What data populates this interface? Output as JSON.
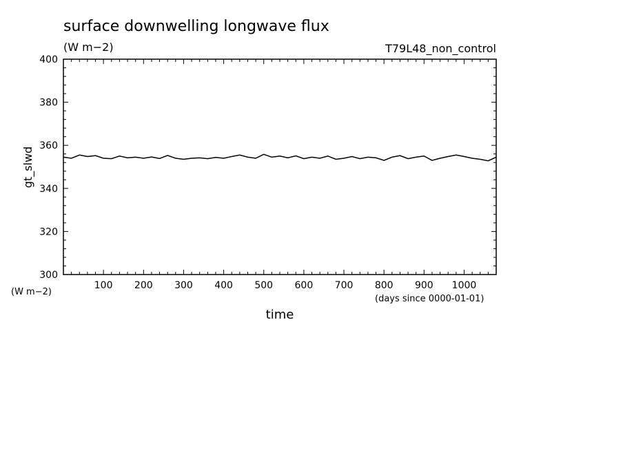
{
  "chart_data": {
    "type": "line",
    "title": "surface downwelling longwave flux",
    "units": "(W m−2)",
    "run_label": "T79L48_non_control",
    "xlabel": "time",
    "x_units": "(days since 0000-01-01)",
    "ylabel": "gt_slwd",
    "y_units": "(W m−2)",
    "xlim": [
      0,
      1080
    ],
    "ylim": [
      300,
      400
    ],
    "xticks": [
      100,
      200,
      300,
      400,
      500,
      600,
      700,
      800,
      900,
      1000
    ],
    "yticks": [
      300,
      320,
      340,
      360,
      380,
      400
    ],
    "grid": false,
    "series": [
      {
        "x": [
          0,
          20,
          40,
          60,
          80,
          100,
          120,
          140,
          160,
          180,
          200,
          220,
          240,
          260,
          280,
          300,
          320,
          340,
          360,
          380,
          400,
          420,
          440,
          460,
          480,
          500,
          520,
          540,
          560,
          580,
          600,
          620,
          640,
          660,
          680,
          700,
          720,
          740,
          760,
          780,
          800,
          820,
          840,
          860,
          880,
          900,
          920,
          940,
          960,
          980,
          1000,
          1020,
          1040,
          1060,
          1080
        ],
        "y": [
          354.5,
          354.0,
          355.5,
          354.8,
          355.2,
          354.0,
          353.8,
          355.0,
          354.2,
          354.5,
          354.0,
          354.6,
          353.9,
          355.3,
          354.0,
          353.5,
          354.0,
          354.2,
          353.8,
          354.4,
          354.0,
          354.8,
          355.5,
          354.5,
          354.0,
          355.8,
          354.5,
          355.0,
          354.2,
          355.1,
          353.8,
          354.5,
          354.0,
          355.0,
          353.5,
          354.0,
          354.8,
          353.8,
          354.5,
          354.2,
          353.0,
          354.5,
          355.2,
          353.8,
          354.5,
          355.0,
          353.0,
          354.0,
          354.8,
          355.5,
          354.8,
          354.0,
          353.5,
          352.8,
          354.5
        ]
      }
    ]
  }
}
